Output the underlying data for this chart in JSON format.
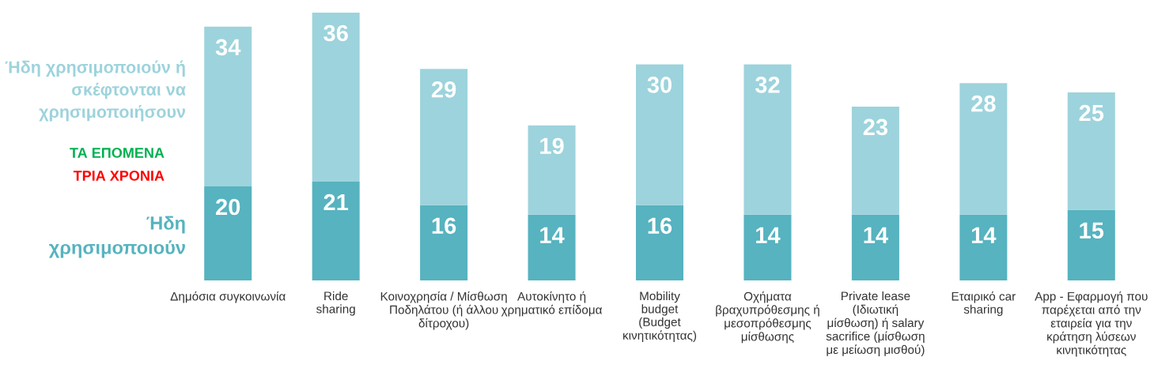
{
  "chart_data": {
    "type": "bar",
    "stacked": true,
    "data_labels": true,
    "legend": false,
    "grid": false,
    "categories": [
      "Δημόσια συγκοινωνία",
      "Ride\nsharing",
      "Κοινοχρησία / Μίσθωση\nΠοδηλάτου (ή άλλου\nδίτροχου)",
      "Αυτοκίνητο ή\nχρηματικό επίδομα",
      "Mobility\nbudget\n(Budget\nκινητικότητας)",
      "Οχήματα\nβραχυπρόθεσμης ή\nμεσοπρόθεσμης\nμίσθωσης",
      "Private lease\n(Ιδιωτική\nμίσθωση) ή salary\nsacrifice (μίσθωση\nμε μείωση μισθού)",
      "Εταιρικό car\nsharing",
      "App - Εφαρμογή που\nπαρέχεται από την\nεταιρεία για την\nκράτηση λύσεων\nκινητικότητας"
    ],
    "series": [
      {
        "name": "Ήδη\nχρησιμοποιούν",
        "color": "#56b3bf",
        "values": [
          20,
          21,
          16,
          14,
          16,
          14,
          14,
          14,
          15
        ]
      },
      {
        "name": "Ήδη χρησιμοποιούν ή\nσκέφτονται να\nχρησιμοποιήσουν",
        "color": "#9dd3dc",
        "values": [
          34,
          36,
          29,
          19,
          30,
          32,
          23,
          28,
          25
        ]
      }
    ],
    "annotations": [
      "ΤΑ ΕΠΟΜΕΝΑ",
      "ΤΡΙΑ ΧΡΟΝΙΑ"
    ]
  }
}
